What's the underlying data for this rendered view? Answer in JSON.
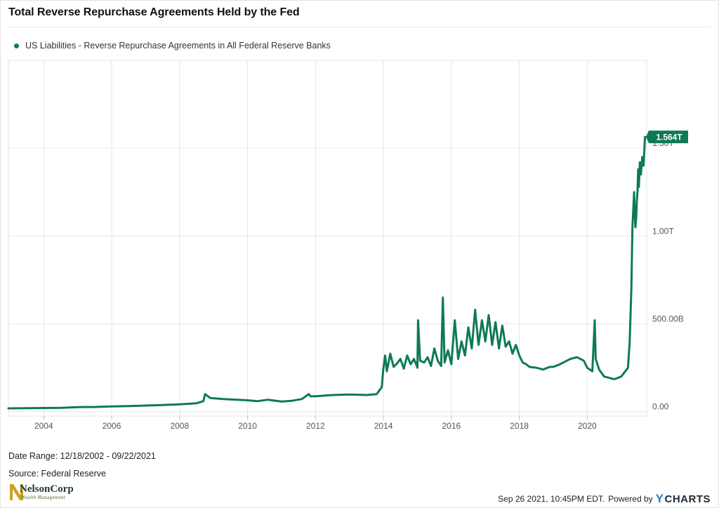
{
  "title": "Total Reverse Repurchase Agreements Held by the Fed",
  "legend_label": "US Liabilities - Reverse Repurchase Agreements in All Federal Reserve Banks",
  "date_range": "Date Range: 12/18/2002 - 09/22/2021",
  "source": "Source: Federal Reserve",
  "footer": {
    "timestamp": "Sep 26 2021, 10:45PM EDT.",
    "powered_by": "Powered by",
    "brand_y": "Y",
    "brand_rest": "CHARTS"
  },
  "logo": {
    "name": "NelsonCorp",
    "tagline": "Wealth Management",
    "colors": {
      "mark": "#c9a227",
      "text": "#1e3a28"
    }
  },
  "colors": {
    "series": "#0e7a54",
    "grid": "#e6e6e6",
    "badge": "#0e7a54"
  },
  "chart_data": {
    "type": "line",
    "title": "Total Reverse Repurchase Agreements Held by the Fed",
    "xlabel": "",
    "ylabel": "",
    "x_ticks": [
      "2004",
      "2006",
      "2008",
      "2010",
      "2012",
      "2014",
      "2016",
      "2018",
      "2020"
    ],
    "y_ticks": [
      {
        "value": 0,
        "label": "0.00"
      },
      {
        "value": 500,
        "label": "500.00B"
      },
      {
        "value": 1000,
        "label": "1.00T"
      },
      {
        "value": 1500,
        "label": "1.50T"
      }
    ],
    "ylim": [
      -25,
      2000
    ],
    "xlim": [
      2002.96,
      2021.75
    ],
    "grid": true,
    "last_value_label": "1.564T",
    "series": [
      {
        "name": "US Liabilities - Reverse Repurchase Agreements in All Federal Reserve Banks",
        "unit": "billions USD",
        "x": [
          2002.96,
          2003.5,
          2004.0,
          2004.5,
          2005.0,
          2005.5,
          2006.0,
          2006.5,
          2007.0,
          2007.5,
          2008.0,
          2008.5,
          2008.7,
          2008.75,
          2008.9,
          2009.3,
          2009.7,
          2010.0,
          2010.3,
          2010.6,
          2011.0,
          2011.3,
          2011.6,
          2011.8,
          2011.85,
          2012.0,
          2012.5,
          2013.0,
          2013.5,
          2013.8,
          2013.95,
          2014.0,
          2014.05,
          2014.1,
          2014.2,
          2014.3,
          2014.4,
          2014.5,
          2014.6,
          2014.7,
          2014.8,
          2014.9,
          2015.0,
          2015.02,
          2015.08,
          2015.2,
          2015.3,
          2015.4,
          2015.5,
          2015.6,
          2015.7,
          2015.75,
          2015.8,
          2015.9,
          2016.0,
          2016.1,
          2016.2,
          2016.3,
          2016.4,
          2016.5,
          2016.6,
          2016.7,
          2016.8,
          2016.9,
          2017.0,
          2017.1,
          2017.2,
          2017.3,
          2017.4,
          2017.5,
          2017.6,
          2017.7,
          2017.8,
          2017.9,
          2018.0,
          2018.1,
          2018.2,
          2018.3,
          2018.5,
          2018.7,
          2018.9,
          2019.0,
          2019.2,
          2019.5,
          2019.7,
          2019.9,
          2020.0,
          2020.15,
          2020.22,
          2020.25,
          2020.35,
          2020.5,
          2020.8,
          2021.0,
          2021.2,
          2021.25,
          2021.3,
          2021.33,
          2021.38,
          2021.4,
          2021.42,
          2021.44,
          2021.46,
          2021.48,
          2021.5,
          2021.52,
          2021.55,
          2021.58,
          2021.62,
          2021.66,
          2021.7,
          2021.72
        ],
        "y": [
          19,
          20,
          21,
          22,
          26,
          27,
          30,
          32,
          35,
          38,
          42,
          48,
          60,
          100,
          78,
          72,
          68,
          65,
          60,
          68,
          58,
          62,
          72,
          100,
          88,
          88,
          95,
          98,
          95,
          100,
          140,
          250,
          320,
          230,
          330,
          255,
          275,
          300,
          245,
          320,
          270,
          300,
          250,
          520,
          290,
          280,
          310,
          260,
          360,
          290,
          260,
          650,
          280,
          350,
          270,
          520,
          300,
          400,
          320,
          480,
          360,
          580,
          380,
          520,
          400,
          550,
          380,
          510,
          360,
          490,
          370,
          400,
          330,
          380,
          320,
          280,
          270,
          255,
          250,
          240,
          255,
          255,
          270,
          300,
          310,
          290,
          250,
          230,
          520,
          300,
          240,
          200,
          185,
          200,
          250,
          400,
          700,
          1050,
          1250,
          1120,
          1050,
          1100,
          1200,
          1250,
          1380,
          1280,
          1420,
          1350,
          1450,
          1400,
          1564,
          1564
        ]
      }
    ]
  }
}
